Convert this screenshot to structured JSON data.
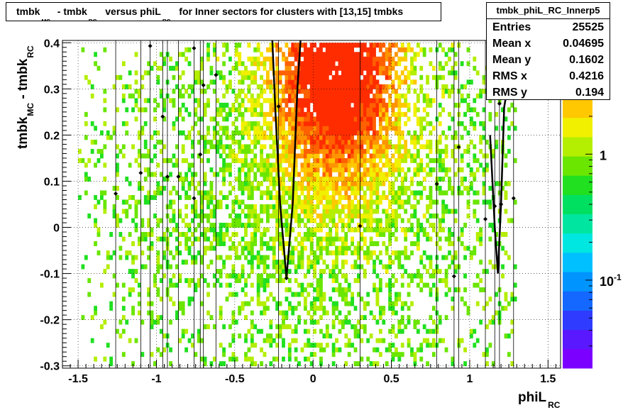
{
  "title_parts": {
    "t1": "tmbk",
    "s1": "MC",
    "t2": " - tmbk",
    "s2": "RC",
    "t3": " versus phiL",
    "s3": "RC",
    "t4": " for Inner sectors for clusters with [13,15] tmbks"
  },
  "stats": {
    "name": "tmbk_phiL_RC_Innerp5",
    "rows": [
      {
        "label": "Entries",
        "value": "25525"
      },
      {
        "label": "Mean x",
        "value": "0.04695"
      },
      {
        "label": "Mean y",
        "value": "0.1602"
      },
      {
        "label": "RMS x",
        "value": "0.4216"
      },
      {
        "label": "RMS y",
        "value": "0.194"
      }
    ]
  },
  "colors": {
    "palette": [
      "#7b00ff",
      "#5a18ff",
      "#2f3cff",
      "#1468ff",
      "#0094ff",
      "#00c0ff",
      "#00e6e0",
      "#00e6a0",
      "#00e060",
      "#20e020",
      "#6ae600",
      "#b4ee00",
      "#f0f000",
      "#ffc800",
      "#ff9400",
      "#ff6000",
      "#ff2c00"
    ],
    "curve": "#000000"
  },
  "chart_data": {
    "type": "heatmap",
    "title": "tmbk_MC - tmbk_RC versus phiL_RC for Inner sectors for clusters with [13,15] tmbks",
    "xlabel": {
      "main": "phiL",
      "sub": "RC"
    },
    "ylabel": {
      "main1": "tmbk",
      "sub1": "MC",
      "main2": " - tmbk",
      "sub2": "RC"
    },
    "xlim": [
      -1.6,
      1.58
    ],
    "ylim": [
      -0.305,
      0.405
    ],
    "x_ticks": [
      -1.5,
      -1,
      -0.5,
      0,
      0.5,
      1,
      1.5
    ],
    "x_tick_labels": [
      "-1.5",
      "-1",
      "-0.5",
      "0",
      "0.5",
      "1",
      "1.5"
    ],
    "y_ticks": [
      -0.3,
      -0.2,
      -0.1,
      0,
      0.1,
      0.2,
      0.3,
      0.4
    ],
    "y_tick_labels": [
      "-0.3",
      "-0.2",
      "-0.1",
      "0",
      "0.1",
      "0.2",
      "0.3",
      "0.4"
    ],
    "grid": true,
    "z_scale": "log",
    "z_tick_labels": [
      {
        "base": "1",
        "exp": "",
        "value": 1
      },
      {
        "base": "10",
        "exp": "-1",
        "value": 0.1
      }
    ],
    "z_range": [
      0.02,
      8
    ],
    "bin_width_x": 0.02,
    "bin_width_y": 0.01,
    "core": {
      "mean_x": 0.15,
      "sigma_x": 0.28,
      "mean_y": 0.35,
      "sigma_y": 0.18
    },
    "profile_points": [
      {
        "x": -1.26,
        "y": 0.073
      },
      {
        "x": -1.1,
        "y": 0.118
      },
      {
        "x": -1.04,
        "y": 0.393
      },
      {
        "x": -0.96,
        "y": 0.24
      },
      {
        "x": -0.93,
        "y": 0.11
      },
      {
        "x": -0.86,
        "y": 0.11
      },
      {
        "x": -0.76,
        "y": 0.388
      },
      {
        "x": -0.7,
        "y": 0.308
      },
      {
        "x": -0.72,
        "y": 0.158
      },
      {
        "x": -0.62,
        "y": 0.33
      },
      {
        "x": -0.76,
        "y": 0.063
      },
      {
        "x": -0.22,
        "y": 0.262
      },
      {
        "x": -0.17,
        "y": -0.11
      },
      {
        "x": 0.3,
        "y": 0.003
      },
      {
        "x": 0.79,
        "y": 0.094
      },
      {
        "x": 0.9,
        "y": -0.106
      },
      {
        "x": 0.93,
        "y": 0.174
      },
      {
        "x": 1.1,
        "y": 0.018
      },
      {
        "x": 1.16,
        "y": 0.046
      },
      {
        "x": 1.2,
        "y": 0.05
      },
      {
        "x": 1.19,
        "y": 0.268
      },
      {
        "x": 1.28,
        "y": 0.063
      }
    ],
    "vertical_error_bars_x": [
      -1.26,
      -1.1,
      -1.04,
      -0.96,
      -0.93,
      -0.86,
      -0.76,
      -0.72,
      -0.7,
      -0.62,
      -0.22,
      0.3,
      0.79,
      0.9,
      0.93,
      1.1,
      1.16,
      1.19,
      1.28
    ],
    "fit_curves": [
      {
        "points": [
          [
            -0.26,
            0.405
          ],
          [
            -0.24,
            0.25
          ],
          [
            -0.21,
            0.05
          ],
          [
            -0.17,
            -0.11
          ],
          [
            -0.13,
            0.05
          ],
          [
            -0.1,
            0.3
          ],
          [
            -0.08,
            0.405
          ]
        ]
      },
      {
        "points": [
          [
            1.13,
            0.2
          ],
          [
            1.16,
            0.0
          ],
          [
            1.18,
            -0.1
          ],
          [
            1.2,
            0.05
          ],
          [
            1.22,
            0.26
          ],
          [
            1.23,
            0.28
          ]
        ]
      }
    ]
  }
}
